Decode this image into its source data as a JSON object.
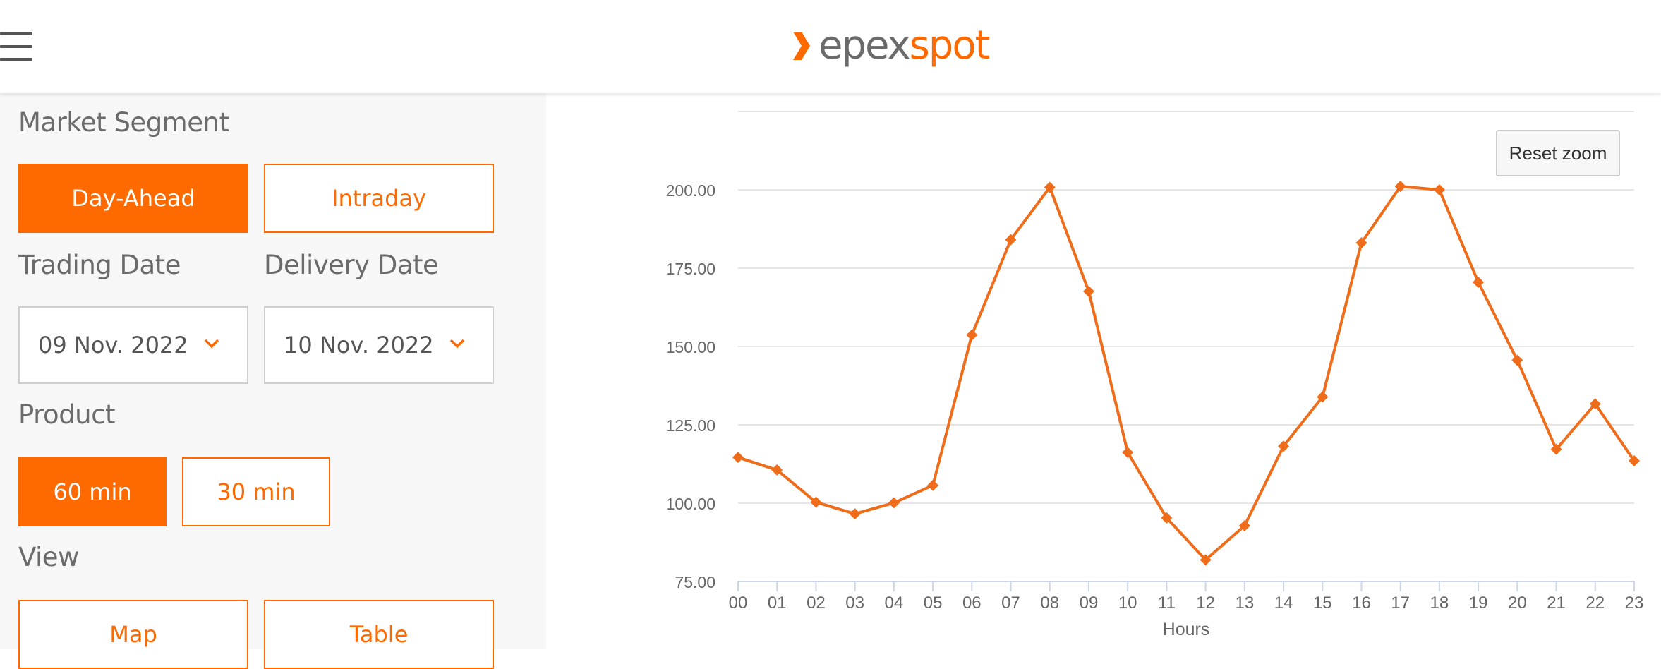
{
  "header": {
    "logo_part1": "epex",
    "logo_part2": "spot",
    "menu_icon": "hamburger-menu-icon",
    "brand_color": "#ff6a00"
  },
  "sidebar": {
    "market_segment": {
      "label": "Market Segment",
      "options": [
        "Day-Ahead",
        "Intraday"
      ],
      "selected": "Day-Ahead"
    },
    "trading_date": {
      "label": "Trading Date",
      "value": "09 Nov. 2022"
    },
    "delivery_date": {
      "label": "Delivery Date",
      "value": "10 Nov. 2022"
    },
    "product": {
      "label": "Product",
      "options": [
        "60 min",
        "30 min"
      ],
      "selected": "60 min"
    },
    "view": {
      "label": "View",
      "options": [
        "Map",
        "Table"
      ]
    }
  },
  "chart": {
    "reset_zoom_label": "Reset zoom"
  },
  "chart_data": {
    "type": "line",
    "title": "",
    "xlabel": "Hours",
    "ylabel": "",
    "categories": [
      "00",
      "01",
      "02",
      "03",
      "04",
      "05",
      "06",
      "07",
      "08",
      "09",
      "10",
      "11",
      "12",
      "13",
      "14",
      "15",
      "16",
      "17",
      "18",
      "19",
      "20",
      "21",
      "22",
      "23"
    ],
    "y_ticks": [
      "75.00",
      "100.00",
      "125.00",
      "150.00",
      "175.00",
      "200.00"
    ],
    "ylim": [
      75,
      225
    ],
    "grid": true,
    "series": [
      {
        "color": "#ef6c1a",
        "marker": "diamond",
        "values": [
          114.6,
          110.6,
          100.3,
          96.6,
          100.1,
          105.7,
          153.7,
          184.1,
          200.8,
          167.6,
          116.2,
          95.3,
          81.9,
          92.8,
          118.2,
          133.9,
          183.1,
          201.1,
          200.0,
          170.5,
          145.6,
          117.2,
          131.7,
          113.5
        ]
      }
    ]
  }
}
